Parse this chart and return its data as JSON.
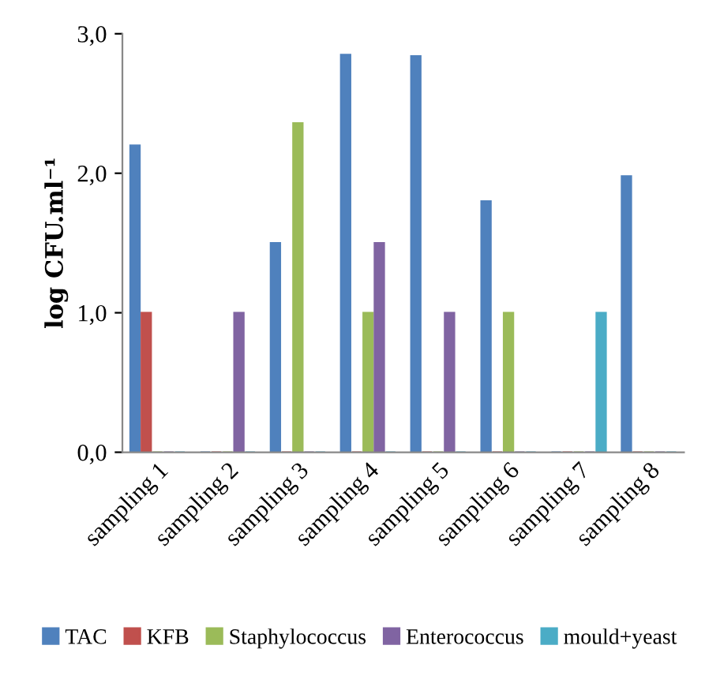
{
  "chart_data": {
    "type": "bar",
    "ylabel": "log CFU.ml⁻¹",
    "categories": [
      "sampling 1",
      "sampling 2",
      "sampling 3",
      "sampling 4",
      "sampling 5",
      "sampling 6",
      "sampling 7",
      "sampling 8"
    ],
    "series": [
      {
        "name": "TAC",
        "color": "#4f81bd",
        "values": [
          2.2,
          0,
          1.5,
          2.85,
          2.84,
          1.8,
          0,
          1.98
        ]
      },
      {
        "name": "KFB",
        "color": "#c0504d",
        "values": [
          1.0,
          0,
          0,
          0,
          0,
          0,
          0,
          0
        ]
      },
      {
        "name": "Staphylococcus",
        "color": "#9bbb59",
        "values": [
          0,
          0,
          2.36,
          1.0,
          0,
          1.0,
          0,
          0
        ]
      },
      {
        "name": "Enterococcus",
        "color": "#8064a2",
        "values": [
          0,
          1.0,
          0,
          1.5,
          1.0,
          0,
          0,
          0
        ]
      },
      {
        "name": "mould+yeast",
        "color": "#4bacc6",
        "values": [
          0,
          0,
          0,
          0,
          0,
          0,
          1.0,
          0
        ]
      }
    ],
    "ylim": [
      0,
      3.0
    ],
    "yticks": [
      {
        "value": 0,
        "label": "0,0"
      },
      {
        "value": 1.0,
        "label": "1,0"
      },
      {
        "value": 2.0,
        "label": "2,0"
      },
      {
        "value": 3.0,
        "label": "3,0"
      }
    ],
    "grid": false,
    "legend": "bottom"
  }
}
